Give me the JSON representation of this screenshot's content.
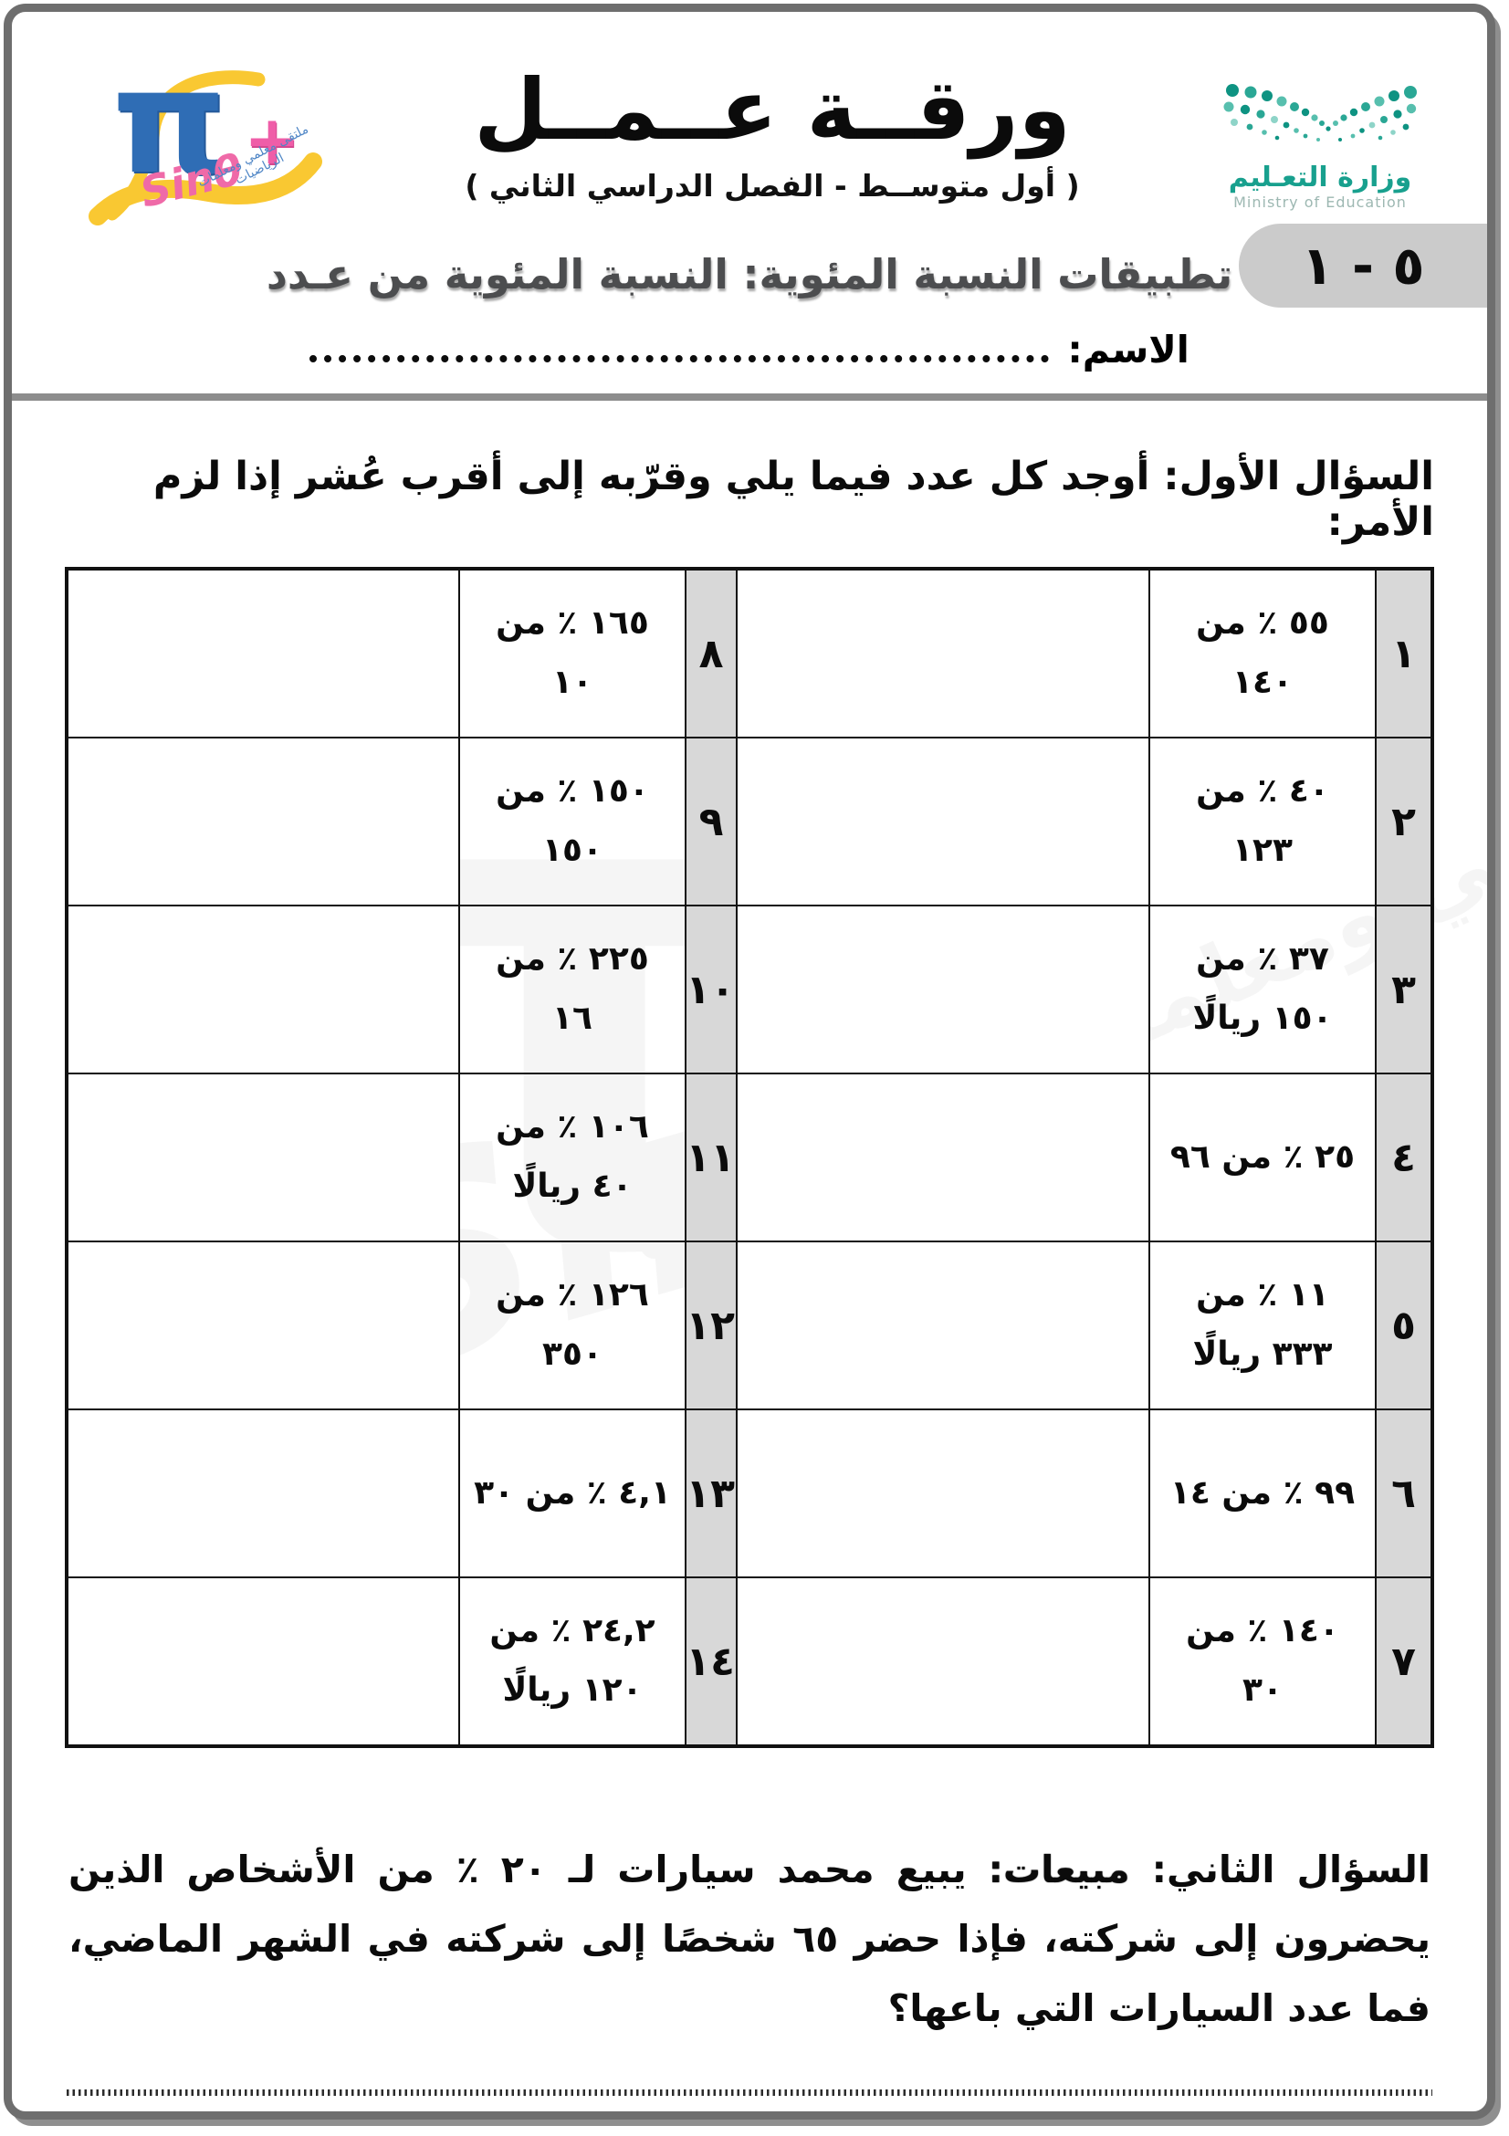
{
  "header": {
    "title": "ورقــة عــمــل",
    "subtitle": "( أول متوســط - الفصل الدراسي الثاني )",
    "logo": {
      "pi": "π",
      "plus": "+",
      "sin": "Sinθ",
      "ribbon_text": "ملتقى معلمي ومعلمات الرياضيات"
    },
    "ministry": {
      "arabic": "وزارة التعـليم",
      "english": "Ministry of Education",
      "accent_color": "#18a08e"
    }
  },
  "lesson": {
    "badge": "٥ - ١",
    "topic": "تطبيقات النسبة المئوية: النسبة المئوية من عـدد"
  },
  "name_line": {
    "label": "الاسم:"
  },
  "q1": {
    "heading": "السؤال الأول: أوجد كل عدد فيما يلي وقرّبه إلى أقرب عُشر إذا لزم الأمر:",
    "rows": [
      {
        "right_num": "١",
        "right_problem": "٥٥ ٪ من ١٤٠",
        "left_num": "٨",
        "left_problem": "١٦٥ ٪ من ١٠"
      },
      {
        "right_num": "٢",
        "right_problem": "٤٠ ٪ من ١٢٣",
        "left_num": "٩",
        "left_problem": "١٥٠ ٪ من ١٥٠"
      },
      {
        "right_num": "٣",
        "right_problem": "٣٧ ٪ من ١٥٠ ريالًا",
        "left_num": "١٠",
        "left_problem": "٢٢٥ ٪ من ١٦"
      },
      {
        "right_num": "٤",
        "right_problem": "٢٥ ٪ من ٩٦",
        "left_num": "١١",
        "left_problem": "١٠٦ ٪ من ٤٠ ريالًا"
      },
      {
        "right_num": "٥",
        "right_problem": "١١ ٪ من ٣٣٣ ريالًا",
        "left_num": "١٢",
        "left_problem": "١٢٦ ٪ من ٣٥٠"
      },
      {
        "right_num": "٦",
        "right_problem": "٩٩ ٪ من ١٤",
        "left_num": "١٣",
        "left_problem": "٤,١ ٪ من ٣٠"
      },
      {
        "right_num": "٧",
        "right_problem": "١٤٠ ٪ من ٣٠",
        "left_num": "١٤",
        "left_problem": "٢٤,٢ ٪ من ١٢٠ ريالًا"
      }
    ]
  },
  "q2": {
    "label": "السؤال الثاني:",
    "bold_word": "مبيعات:",
    "text": "يبيع محمد سيارات لـ ٢٠ ٪ من الأشخاص الذين يحضرون إلى شركته، فإذا حضر ٦٥ شخصًا إلى شركته في الشهر الماضي، فما عدد السيارات التي باعها؟"
  },
  "colors": {
    "badge_gray": "#cbcbcb",
    "number_column_gray": "#d8d8d8",
    "divider_gray": "#8d8d8d",
    "logo_blue": "#2f6db5",
    "logo_pink": "#ef5da8",
    "logo_yellow": "#f9c832",
    "ministry_teal": "#18a08e"
  }
}
